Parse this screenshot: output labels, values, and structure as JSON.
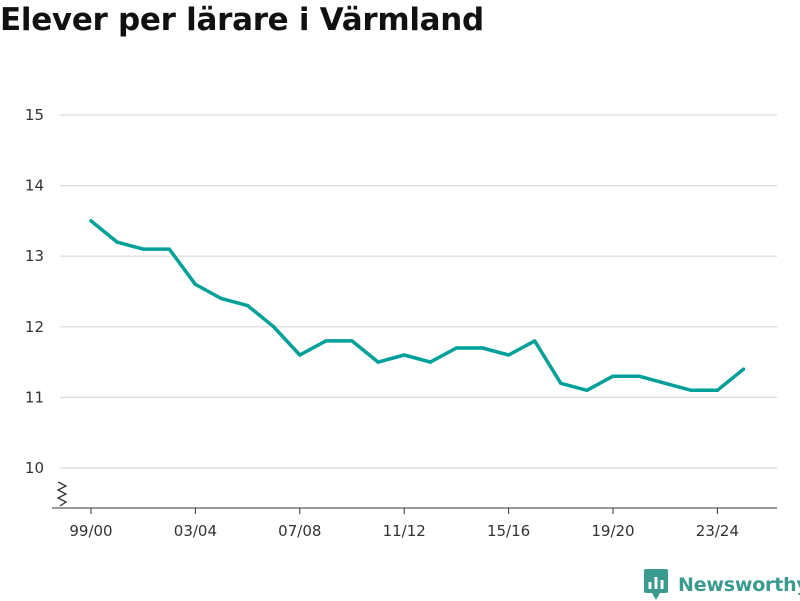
{
  "title": "Elever per lärare i Värmland",
  "brand": {
    "name": "Newsworthy",
    "icon": "newsworthy-logo-icon",
    "color": "#3a9a8f"
  },
  "chart_data": {
    "type": "line",
    "title": "Elever per lärare i Värmland",
    "xlabel": "",
    "ylabel": "",
    "x": [
      "99/00",
      "00/01",
      "01/02",
      "02/03",
      "03/04",
      "04/05",
      "05/06",
      "06/07",
      "07/08",
      "08/09",
      "09/10",
      "10/11",
      "11/12",
      "12/13",
      "13/14",
      "14/15",
      "15/16",
      "16/17",
      "17/18",
      "18/19",
      "19/20",
      "20/21",
      "21/22",
      "22/23",
      "23/24",
      "24/25"
    ],
    "x_tick_labels": [
      "99/00",
      "03/04",
      "07/08",
      "11/12",
      "15/16",
      "19/20",
      "23/24"
    ],
    "series": [
      {
        "color": "#00a09a",
        "values": [
          13.5,
          13.2,
          13.1,
          13.1,
          12.6,
          12.4,
          12.3,
          12.0,
          11.6,
          11.8,
          11.8,
          11.5,
          11.6,
          11.5,
          11.7,
          11.7,
          11.6,
          11.8,
          11.2,
          11.1,
          11.3,
          11.3,
          11.2,
          11.1,
          11.1,
          11.4
        ]
      }
    ],
    "ylim": [
      10,
      15
    ],
    "y_ticks": [
      10,
      11,
      12,
      13,
      14,
      15
    ],
    "y_axis_break": true,
    "grid": true,
    "gridline_color": "#d9d9d9",
    "legend": "none"
  }
}
